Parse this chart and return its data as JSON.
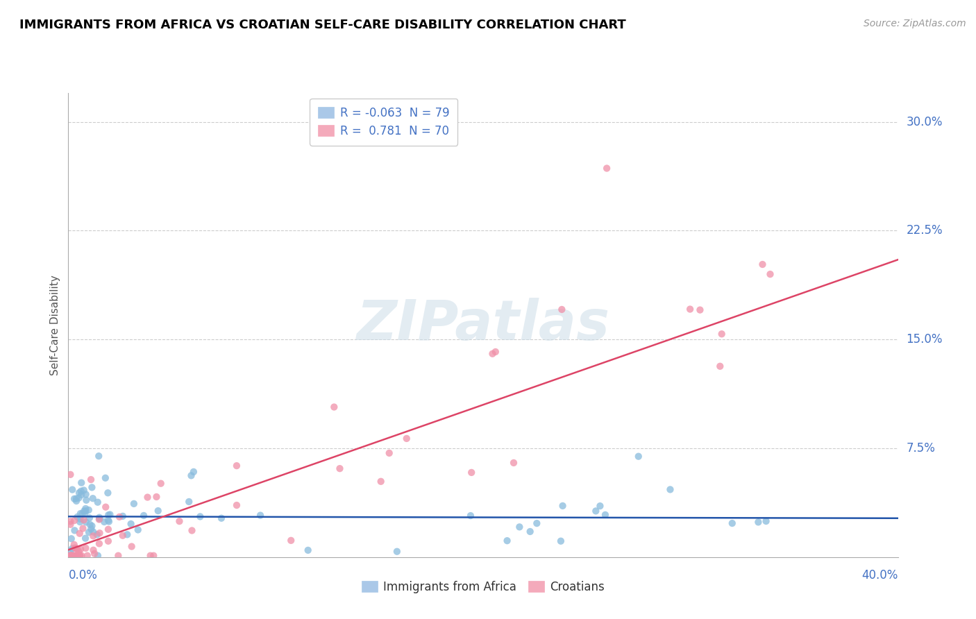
{
  "title": "IMMIGRANTS FROM AFRICA VS CROATIAN SELF-CARE DISABILITY CORRELATION CHART",
  "source": "Source: ZipAtlas.com",
  "ylabel": "Self-Care Disability",
  "xlim": [
    0.0,
    0.4
  ],
  "ylim": [
    0.0,
    0.32
  ],
  "ytick_vals": [
    0.075,
    0.15,
    0.225,
    0.3
  ],
  "ytick_labels": [
    "7.5%",
    "15.0%",
    "22.5%",
    "30.0%"
  ],
  "xtick_vals": [
    0.0,
    0.4
  ],
  "xtick_labels": [
    "0.0%",
    "40.0%"
  ],
  "africa_R": -0.063,
  "africa_N": 79,
  "croatian_R": 0.781,
  "croatian_N": 70,
  "africa_color": "#88bbdd",
  "croatian_color": "#f090a8",
  "africa_line_color": "#2255aa",
  "croatian_line_color": "#dd4466",
  "africa_line_intercept": 0.028,
  "africa_line_slope": -0.003,
  "croatian_line_intercept": 0.005,
  "croatian_line_slope": 0.5,
  "watermark_text": "ZIPatlas",
  "background_color": "#ffffff",
  "grid_color": "#cccccc",
  "title_color": "#000000",
  "axis_label_color": "#4472c4",
  "legend1_label1": "R = -0.063  N = 79",
  "legend1_label2": "R =  0.781  N = 70",
  "legend2_label1": "Immigrants from Africa",
  "legend2_label2": "Croatians"
}
